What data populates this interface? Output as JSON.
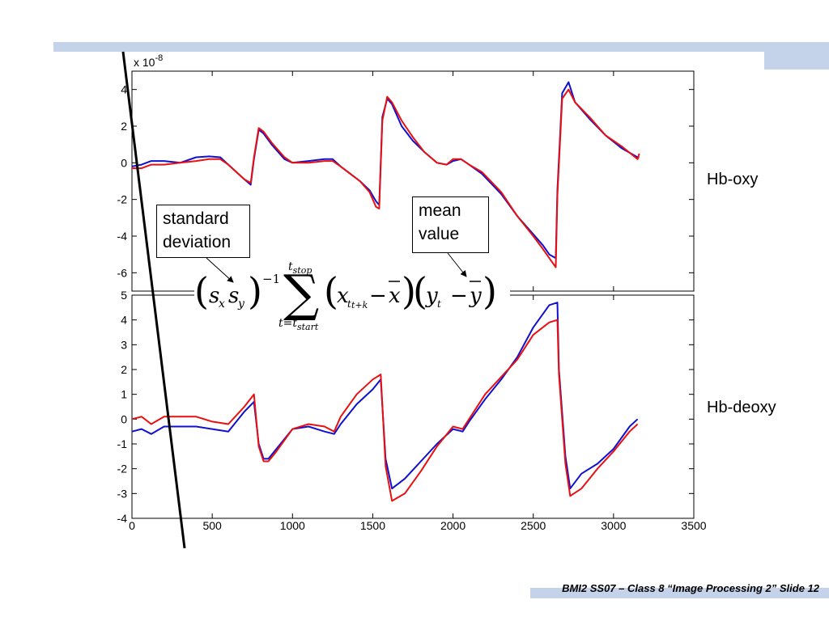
{
  "footer": {
    "text": "BMI2 SS07 – Class 8 “Image Processing 2” Slide 12"
  },
  "labels": {
    "top_panel": "Hb-oxy",
    "bottom_panel": "Hb-deoxy"
  },
  "callouts": {
    "std": [
      "standard",
      "deviation"
    ],
    "mean": [
      "mean",
      "value"
    ]
  },
  "formula": {
    "upper_limit": "t",
    "upper_limit_sub": "stop",
    "lower_limit": "t=t",
    "lower_limit_sub": "start",
    "exponent": "−1",
    "lag_subscript": "t+k",
    "lag_color": "#e01010"
  },
  "colors": {
    "series1": "#1010d0",
    "series2": "#e81010",
    "accent_bar": "#c5d3ea"
  },
  "chart_data": [
    {
      "type": "line",
      "panel": "Hb-oxy",
      "scale_label": "x 10",
      "scale_exponent": "-8",
      "xlim": [
        0,
        3500
      ],
      "ylim": [
        -7,
        5
      ],
      "yticks": [
        -6,
        -4,
        -2,
        0,
        2,
        4
      ],
      "series": [
        {
          "color": "blue",
          "x": [
            0,
            60,
            120,
            200,
            300,
            400,
            480,
            550,
            600,
            700,
            740,
            760,
            790,
            820,
            870,
            950,
            1000,
            1100,
            1200,
            1250,
            1300,
            1360,
            1420,
            1480,
            1520,
            1540,
            1560,
            1590,
            1620,
            1680,
            1750,
            1820,
            1900,
            1960,
            2000,
            2050,
            2100,
            2180,
            2300,
            2400,
            2500,
            2560,
            2600,
            2640,
            2650,
            2680,
            2720,
            2760,
            2850,
            2950,
            3050,
            3150,
            3160
          ],
          "y": [
            -0.2,
            -0.1,
            0.1,
            0.1,
            0.0,
            0.3,
            0.35,
            0.3,
            -0.1,
            -0.9,
            -1.2,
            0.2,
            1.8,
            1.6,
            1.0,
            0.2,
            0.0,
            0.1,
            0.2,
            0.2,
            -0.2,
            -0.6,
            -1.0,
            -1.5,
            -2.1,
            -2.3,
            2.5,
            3.5,
            3.2,
            2.0,
            1.2,
            0.6,
            0.0,
            -0.1,
            0.1,
            0.2,
            -0.1,
            -0.6,
            -1.7,
            -2.9,
            -3.9,
            -4.5,
            -5.0,
            -5.2,
            -1.5,
            3.8,
            4.4,
            3.3,
            2.4,
            1.5,
            0.8,
            0.3,
            0.3
          ]
        },
        {
          "color": "red",
          "x": [
            0,
            60,
            120,
            200,
            300,
            400,
            480,
            550,
            600,
            700,
            740,
            760,
            790,
            820,
            870,
            950,
            1000,
            1100,
            1200,
            1250,
            1300,
            1360,
            1420,
            1480,
            1520,
            1540,
            1560,
            1590,
            1620,
            1680,
            1750,
            1820,
            1900,
            1960,
            2000,
            2050,
            2100,
            2180,
            2300,
            2400,
            2500,
            2560,
            2600,
            2640,
            2650,
            2680,
            2720,
            2760,
            2850,
            2950,
            3050,
            3150,
            3160
          ],
          "y": [
            -0.3,
            -0.3,
            -0.1,
            -0.1,
            0.0,
            0.1,
            0.2,
            0.2,
            -0.1,
            -0.9,
            -1.1,
            0.3,
            1.9,
            1.7,
            1.1,
            0.3,
            0.0,
            0.0,
            0.1,
            0.1,
            -0.2,
            -0.6,
            -1.0,
            -1.6,
            -2.4,
            -2.5,
            2.3,
            3.6,
            3.3,
            2.3,
            1.4,
            0.6,
            0.0,
            -0.1,
            0.2,
            0.2,
            -0.1,
            -0.5,
            -1.6,
            -2.9,
            -4.0,
            -4.7,
            -5.2,
            -5.7,
            -1.8,
            3.5,
            4.0,
            3.3,
            2.5,
            1.5,
            0.9,
            0.2,
            0.5
          ]
        }
      ]
    },
    {
      "type": "line",
      "panel": "Hb-deoxy",
      "xlim": [
        0,
        3500
      ],
      "ylim": [
        -4,
        5
      ],
      "xticks": [
        0,
        500,
        1000,
        1500,
        2000,
        2500,
        3000,
        3500
      ],
      "yticks": [
        -4,
        -3,
        -2,
        -1,
        0,
        1,
        2,
        3,
        4,
        5
      ],
      "series": [
        {
          "color": "blue",
          "x": [
            0,
            60,
            120,
            200,
            300,
            400,
            500,
            600,
            700,
            760,
            790,
            820,
            850,
            900,
            1000,
            1100,
            1200,
            1260,
            1300,
            1400,
            1500,
            1550,
            1580,
            1620,
            1700,
            1800,
            1900,
            2000,
            2060,
            2100,
            2200,
            2300,
            2400,
            2500,
            2600,
            2650,
            2660,
            2700,
            2730,
            2800,
            2900,
            3000,
            3100,
            3150
          ],
          "y": [
            -0.5,
            -0.4,
            -0.6,
            -0.3,
            -0.3,
            -0.3,
            -0.4,
            -0.5,
            0.3,
            0.7,
            -1.0,
            -1.6,
            -1.6,
            -1.2,
            -0.4,
            -0.3,
            -0.5,
            -0.6,
            -0.2,
            0.6,
            1.2,
            1.6,
            -1.6,
            -2.8,
            -2.4,
            -1.7,
            -1.0,
            -0.4,
            -0.5,
            -0.1,
            0.8,
            1.6,
            2.5,
            3.7,
            4.6,
            4.7,
            2.0,
            -1.5,
            -2.8,
            -2.2,
            -1.8,
            -1.2,
            -0.3,
            0.0
          ]
        },
        {
          "color": "red",
          "x": [
            0,
            60,
            120,
            200,
            300,
            400,
            500,
            600,
            700,
            760,
            790,
            820,
            850,
            900,
            1000,
            1100,
            1200,
            1260,
            1300,
            1400,
            1500,
            1550,
            1580,
            1620,
            1700,
            1800,
            1900,
            2000,
            2060,
            2100,
            2200,
            2300,
            2400,
            2500,
            2600,
            2650,
            2660,
            2700,
            2730,
            2800,
            2900,
            3000,
            3100,
            3150
          ],
          "y": [
            0.0,
            0.1,
            -0.2,
            0.1,
            0.1,
            0.1,
            -0.1,
            -0.2,
            0.5,
            1.0,
            -1.1,
            -1.7,
            -1.7,
            -1.3,
            -0.4,
            -0.2,
            -0.3,
            -0.5,
            0.1,
            1.0,
            1.6,
            1.8,
            -1.9,
            -3.3,
            -3.0,
            -2.1,
            -1.1,
            -0.3,
            -0.4,
            0.0,
            1.0,
            1.7,
            2.4,
            3.4,
            3.9,
            4.0,
            1.8,
            -1.8,
            -3.1,
            -2.8,
            -2.0,
            -1.3,
            -0.5,
            -0.2
          ]
        }
      ]
    }
  ]
}
